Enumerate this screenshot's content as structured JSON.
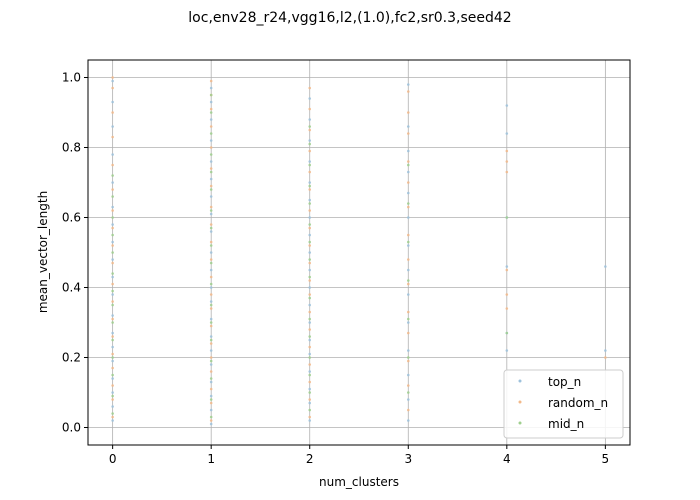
{
  "chart_data": {
    "type": "scatter",
    "title": "loc,env28_r24,vgg16,l2,(1.0),fc2,sr0.3,seed42",
    "xlabel": "num_clusters",
    "ylabel": "mean_vector_length",
    "xlim": [
      -0.25,
      5.25
    ],
    "ylim": [
      -0.05,
      1.05
    ],
    "xticks": [
      "0",
      "1",
      "2",
      "3",
      "4",
      "5"
    ],
    "yticks": [
      "0.0",
      "0.2",
      "0.4",
      "0.6",
      "0.8",
      "1.0"
    ],
    "grid": true,
    "legend_position": "lower-right",
    "series": [
      {
        "name": "top_n",
        "color": "#9ec2dc",
        "points": [
          [
            0,
            0.02
          ],
          [
            0,
            0.06
          ],
          [
            0,
            0.1
          ],
          [
            0,
            0.14
          ],
          [
            0,
            0.19
          ],
          [
            0,
            0.23
          ],
          [
            0,
            0.27
          ],
          [
            0,
            0.32
          ],
          [
            0,
            0.38
          ],
          [
            0,
            0.43
          ],
          [
            0,
            0.48
          ],
          [
            0,
            0.53
          ],
          [
            0,
            0.58
          ],
          [
            0,
            0.63
          ],
          [
            0,
            0.7
          ],
          [
            0,
            0.78
          ],
          [
            0,
            0.86
          ],
          [
            0,
            0.93
          ],
          [
            0,
            0.99
          ],
          [
            1,
            0.01
          ],
          [
            1,
            0.05
          ],
          [
            1,
            0.09
          ],
          [
            1,
            0.13
          ],
          [
            1,
            0.18
          ],
          [
            1,
            0.22
          ],
          [
            1,
            0.26
          ],
          [
            1,
            0.31
          ],
          [
            1,
            0.36
          ],
          [
            1,
            0.4
          ],
          [
            1,
            0.45
          ],
          [
            1,
            0.5
          ],
          [
            1,
            0.56
          ],
          [
            1,
            0.61
          ],
          [
            1,
            0.66
          ],
          [
            1,
            0.71
          ],
          [
            1,
            0.76
          ],
          [
            1,
            0.82
          ],
          [
            1,
            0.88
          ],
          [
            1,
            0.93
          ],
          [
            1,
            0.97
          ],
          [
            2,
            0.02
          ],
          [
            2,
            0.07
          ],
          [
            2,
            0.11
          ],
          [
            2,
            0.16
          ],
          [
            2,
            0.21
          ],
          [
            2,
            0.25
          ],
          [
            2,
            0.3
          ],
          [
            2,
            0.35
          ],
          [
            2,
            0.4
          ],
          [
            2,
            0.45
          ],
          [
            2,
            0.5
          ],
          [
            2,
            0.55
          ],
          [
            2,
            0.6
          ],
          [
            2,
            0.65
          ],
          [
            2,
            0.7
          ],
          [
            2,
            0.76
          ],
          [
            2,
            0.82
          ],
          [
            2,
            0.88
          ],
          [
            2,
            0.94
          ],
          [
            3,
            0.02
          ],
          [
            3,
            0.08
          ],
          [
            3,
            0.15
          ],
          [
            3,
            0.22
          ],
          [
            3,
            0.3
          ],
          [
            3,
            0.38
          ],
          [
            3,
            0.45
          ],
          [
            3,
            0.52
          ],
          [
            3,
            0.6
          ],
          [
            3,
            0.67
          ],
          [
            3,
            0.73
          ],
          [
            3,
            0.79
          ],
          [
            3,
            0.86
          ],
          [
            3,
            0.98
          ],
          [
            4,
            0.22
          ],
          [
            4,
            0.27
          ],
          [
            4,
            0.46
          ],
          [
            4,
            0.6
          ],
          [
            4,
            0.84
          ],
          [
            4,
            0.92
          ],
          [
            5,
            0.22
          ],
          [
            5,
            0.46
          ]
        ]
      },
      {
        "name": "random_n",
        "color": "#f2b98a",
        "points": [
          [
            0,
            0.03
          ],
          [
            0,
            0.08
          ],
          [
            0,
            0.12
          ],
          [
            0,
            0.17
          ],
          [
            0,
            0.21
          ],
          [
            0,
            0.26
          ],
          [
            0,
            0.31
          ],
          [
            0,
            0.36
          ],
          [
            0,
            0.41
          ],
          [
            0,
            0.47
          ],
          [
            0,
            0.52
          ],
          [
            0,
            0.57
          ],
          [
            0,
            0.62
          ],
          [
            0,
            0.68
          ],
          [
            0,
            0.75
          ],
          [
            0,
            0.83
          ],
          [
            0,
            0.9
          ],
          [
            0,
            0.97
          ],
          [
            0,
            1.0
          ],
          [
            1,
            0.02
          ],
          [
            1,
            0.07
          ],
          [
            1,
            0.11
          ],
          [
            1,
            0.16
          ],
          [
            1,
            0.2
          ],
          [
            1,
            0.24
          ],
          [
            1,
            0.29
          ],
          [
            1,
            0.34
          ],
          [
            1,
            0.38
          ],
          [
            1,
            0.43
          ],
          [
            1,
            0.48
          ],
          [
            1,
            0.53
          ],
          [
            1,
            0.58
          ],
          [
            1,
            0.63
          ],
          [
            1,
            0.69
          ],
          [
            1,
            0.74
          ],
          [
            1,
            0.8
          ],
          [
            1,
            0.86
          ],
          [
            1,
            0.91
          ],
          [
            1,
            0.95
          ],
          [
            1,
            0.99
          ],
          [
            2,
            0.03
          ],
          [
            2,
            0.08
          ],
          [
            2,
            0.13
          ],
          [
            2,
            0.18
          ],
          [
            2,
            0.23
          ],
          [
            2,
            0.28
          ],
          [
            2,
            0.33
          ],
          [
            2,
            0.38
          ],
          [
            2,
            0.42
          ],
          [
            2,
            0.47
          ],
          [
            2,
            0.52
          ],
          [
            2,
            0.57
          ],
          [
            2,
            0.62
          ],
          [
            2,
            0.68
          ],
          [
            2,
            0.73
          ],
          [
            2,
            0.79
          ],
          [
            2,
            0.85
          ],
          [
            2,
            0.91
          ],
          [
            2,
            0.97
          ],
          [
            3,
            0.05
          ],
          [
            3,
            0.12
          ],
          [
            3,
            0.19
          ],
          [
            3,
            0.27
          ],
          [
            3,
            0.33
          ],
          [
            3,
            0.41
          ],
          [
            3,
            0.48
          ],
          [
            3,
            0.55
          ],
          [
            3,
            0.63
          ],
          [
            3,
            0.7
          ],
          [
            3,
            0.76
          ],
          [
            3,
            0.84
          ],
          [
            3,
            0.9
          ],
          [
            3,
            0.96
          ],
          [
            4,
            0.34
          ],
          [
            4,
            0.38
          ],
          [
            4,
            0.45
          ],
          [
            4,
            0.73
          ],
          [
            4,
            0.76
          ],
          [
            4,
            0.79
          ],
          [
            5,
            0.2
          ]
        ]
      },
      {
        "name": "mid_n",
        "color": "#9fcf8e",
        "points": [
          [
            0,
            0.04
          ],
          [
            0,
            0.09
          ],
          [
            0,
            0.15
          ],
          [
            0,
            0.2
          ],
          [
            0,
            0.25
          ],
          [
            0,
            0.3
          ],
          [
            0,
            0.35
          ],
          [
            0,
            0.39
          ],
          [
            0,
            0.44
          ],
          [
            0,
            0.5
          ],
          [
            0,
            0.55
          ],
          [
            0,
            0.6
          ],
          [
            0,
            0.66
          ],
          [
            0,
            0.72
          ],
          [
            1,
            0.03
          ],
          [
            1,
            0.08
          ],
          [
            1,
            0.14
          ],
          [
            1,
            0.19
          ],
          [
            1,
            0.25
          ],
          [
            1,
            0.3
          ],
          [
            1,
            0.35
          ],
          [
            1,
            0.41
          ],
          [
            1,
            0.47
          ],
          [
            1,
            0.52
          ],
          [
            1,
            0.57
          ],
          [
            1,
            0.62
          ],
          [
            1,
            0.68
          ],
          [
            1,
            0.73
          ],
          [
            1,
            0.78
          ],
          [
            1,
            0.84
          ],
          [
            1,
            0.9
          ],
          [
            1,
            0.95
          ],
          [
            2,
            0.05
          ],
          [
            2,
            0.1
          ],
          [
            2,
            0.15
          ],
          [
            2,
            0.2
          ],
          [
            2,
            0.26
          ],
          [
            2,
            0.31
          ],
          [
            2,
            0.37
          ],
          [
            2,
            0.43
          ],
          [
            2,
            0.48
          ],
          [
            2,
            0.53
          ],
          [
            2,
            0.58
          ],
          [
            2,
            0.64
          ],
          [
            2,
            0.69
          ],
          [
            2,
            0.75
          ],
          [
            2,
            0.81
          ],
          [
            2,
            0.86
          ],
          [
            3,
            0.1
          ],
          [
            3,
            0.2
          ],
          [
            3,
            0.31
          ],
          [
            3,
            0.42
          ],
          [
            3,
            0.53
          ],
          [
            3,
            0.64
          ],
          [
            3,
            0.75
          ],
          [
            4,
            0.27
          ],
          [
            4,
            0.6
          ]
        ]
      }
    ]
  }
}
